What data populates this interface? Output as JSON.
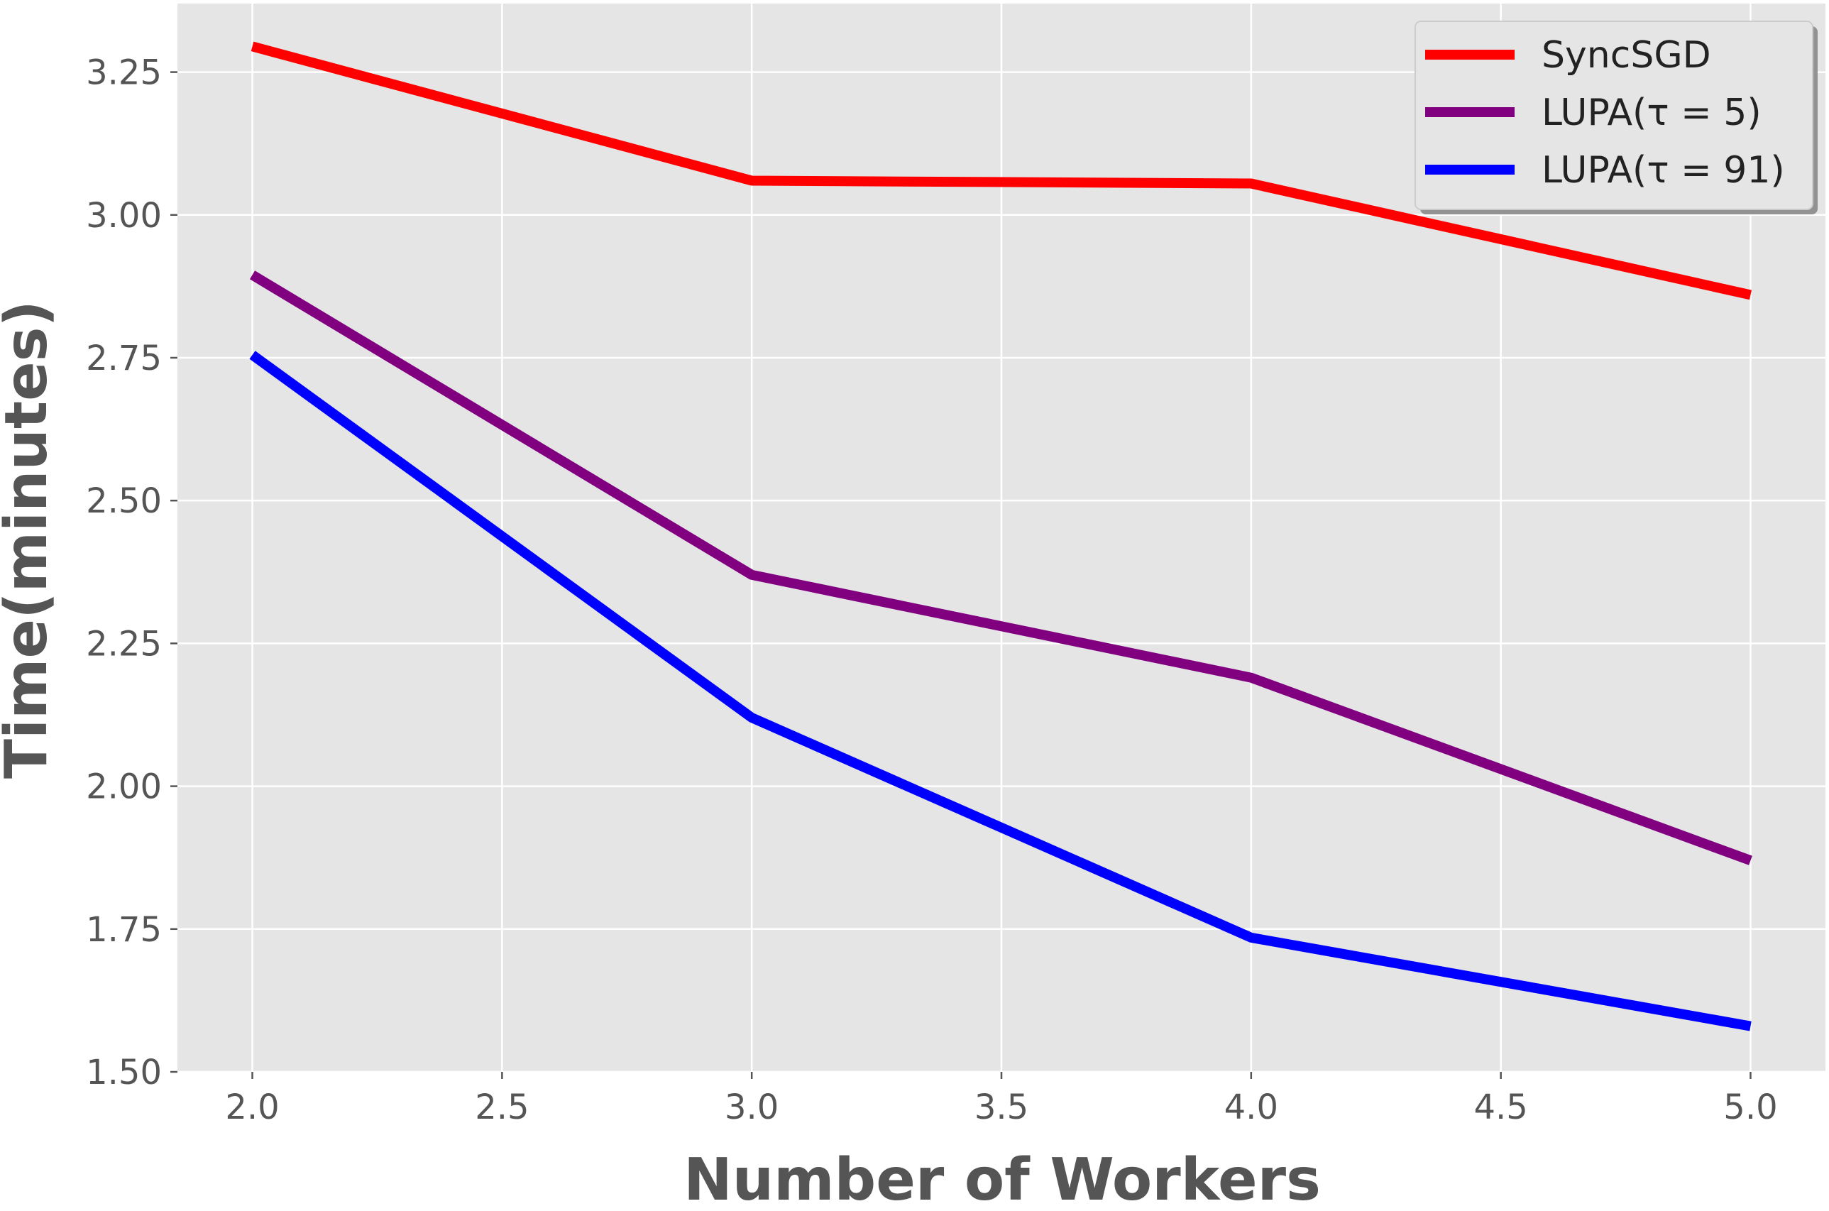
{
  "chart_data": {
    "type": "line",
    "title": "",
    "xlabel": "Number of Workers",
    "ylabel": "Time(minutes)",
    "xlim": [
      1.85,
      5.15
    ],
    "ylim": [
      1.5,
      3.37
    ],
    "x_ticks": [
      "2.0",
      "2.5",
      "3.0",
      "3.5",
      "4.0",
      "4.5",
      "5.0"
    ],
    "y_ticks": [
      "1.50",
      "1.75",
      "2.00",
      "2.25",
      "2.50",
      "2.75",
      "3.00",
      "3.25"
    ],
    "x": [
      2,
      3,
      4,
      5
    ],
    "grid": true,
    "legend_position": "top-right",
    "background": "#e5e5e5",
    "series": [
      {
        "name": "SyncSGD",
        "color": "#ff0000",
        "values": [
          3.295,
          3.06,
          3.055,
          2.86
        ]
      },
      {
        "name": "LUPA(τ = 5)",
        "color": "#800080",
        "values": [
          2.895,
          2.37,
          2.19,
          1.87
        ]
      },
      {
        "name": "LUPA(τ = 91)",
        "color": "#0000ff",
        "values": [
          2.755,
          2.12,
          1.735,
          1.58
        ]
      }
    ]
  }
}
